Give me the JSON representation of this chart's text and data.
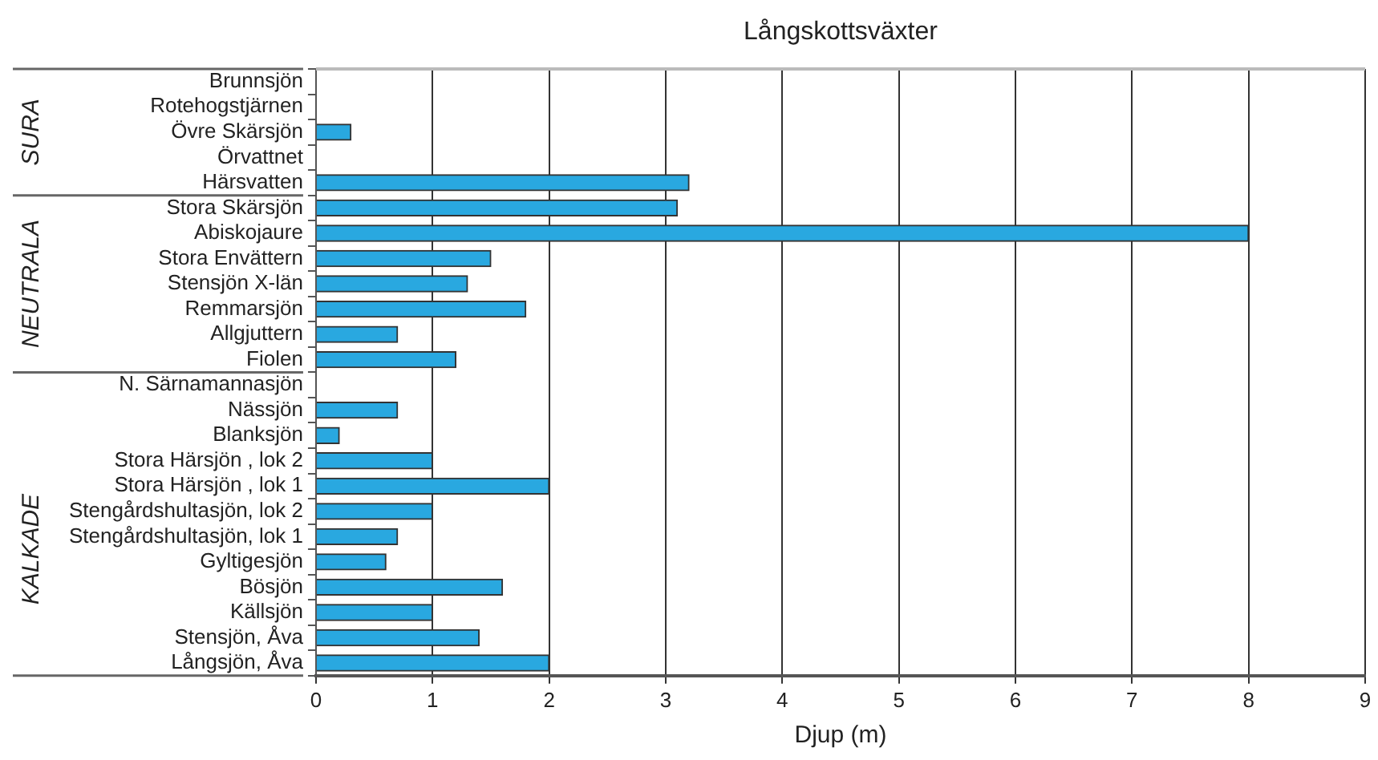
{
  "chart_data": {
    "type": "bar",
    "orientation": "horizontal",
    "title": "Långskottsväxter",
    "xlabel": "Djup (m)",
    "categories": [
      "Brunnsjön",
      "Rotehogstjärnen",
      "Övre Skärsjön",
      "Örvattnet",
      "Härsvatten",
      "Stora Skärsjön",
      "Abiskojaure",
      "Stora Envättern",
      "Stensjön X-län",
      "Remmarsjön",
      "Allgjuttern",
      "Fiolen",
      "N. Särnamannasjön",
      "Nässjön",
      "Blanksjön",
      "Stora Härsjön , lok 2",
      "Stora Härsjön , lok 1",
      "Stengårdshultasjön, lok 2",
      "Stengårdshultasjön, lok 1",
      "Gyltigesjön",
      "Bösjön",
      "Källsjön",
      "Stensjön, Åva",
      "Långsjön, Åva"
    ],
    "values": [
      0,
      0,
      0.3,
      0,
      3.2,
      3.1,
      8.0,
      1.5,
      1.3,
      1.8,
      0.7,
      1.2,
      0,
      0.7,
      0.2,
      1.0,
      2.0,
      1.0,
      0.7,
      0.6,
      1.6,
      1.0,
      1.4,
      2.0
    ],
    "color": "#29a8e0",
    "xlim": [
      0,
      9
    ],
    "xticks": [
      0,
      1,
      2,
      3,
      4,
      5,
      6,
      7,
      8,
      9
    ],
    "grid": "x",
    "annotations": [
      "SURA",
      "NEUTRALA",
      "KALKADE"
    ]
  }
}
